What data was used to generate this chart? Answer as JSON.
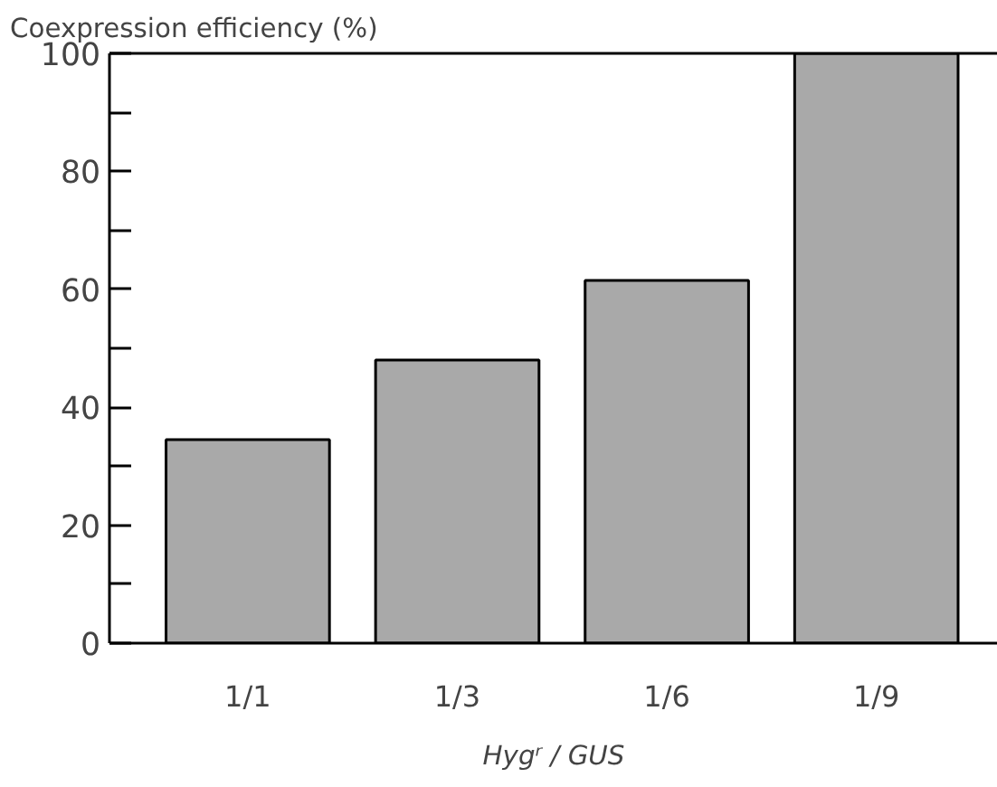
{
  "chart_data": {
    "type": "bar",
    "ylabel": "Coexpression efficiency (%)",
    "xlabel": "Hygʳ / GUS",
    "categories": [
      "1/1",
      "1/3",
      "1/6",
      "1/9"
    ],
    "values": [
      34.5,
      48,
      61.5,
      100
    ],
    "color": "#a9a9a9",
    "ylim": [
      0,
      100
    ],
    "yticks": [
      0,
      {
        "value": 10,
        "label": null
      },
      20,
      {
        "value": 30,
        "label": null
      },
      40,
      {
        "value": 50,
        "label": null
      },
      60,
      {
        "value": 70,
        "label": null
      },
      80,
      {
        "value": 90,
        "label": null
      },
      100
    ],
    "grid": false
  }
}
